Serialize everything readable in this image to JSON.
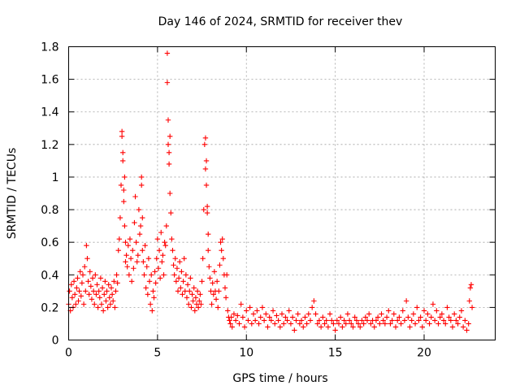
{
  "chart_data": {
    "type": "scatter",
    "title": "Day 146 of 2024, SRMTID for receiver thev",
    "xlabel": "GPS time / hours",
    "ylabel": "SRMTID / TECUs",
    "xlim": [
      0,
      24
    ],
    "ylim": [
      0,
      1.8
    ],
    "xticks": [
      0,
      5,
      10,
      15,
      20
    ],
    "yticks": [
      0,
      0.2,
      0.4,
      0.6,
      0.8,
      1,
      1.2,
      1.4,
      1.6,
      1.8
    ],
    "xtick_labels": [
      "0",
      "5",
      "10",
      "15",
      "20"
    ],
    "ytick_labels": [
      "0",
      "0.2",
      "0.4",
      "0.6",
      "0.8",
      "1",
      "1.2",
      "1.4",
      "1.6",
      "1.8"
    ],
    "grid": true,
    "marker": "plus",
    "color": "#ff0000",
    "series": [
      {
        "name": "SRMTID",
        "x": [
          0.0,
          0.05,
          0.1,
          0.15,
          0.2,
          0.25,
          0.3,
          0.35,
          0.4,
          0.45,
          0.5,
          0.55,
          0.6,
          0.65,
          0.7,
          0.75,
          0.8,
          0.85,
          0.9,
          0.95,
          1.0,
          1.05,
          1.1,
          1.15,
          1.2,
          1.25,
          1.3,
          1.35,
          1.4,
          1.45,
          1.5,
          1.55,
          1.6,
          1.65,
          1.7,
          1.75,
          1.8,
          1.85,
          1.9,
          1.95,
          2.0,
          2.05,
          2.1,
          2.15,
          2.2,
          2.25,
          2.3,
          2.35,
          2.4,
          2.45,
          2.5,
          2.55,
          2.6,
          2.65,
          2.7,
          2.75,
          2.8,
          2.85,
          2.9,
          2.95,
          3.0,
          3.0,
          3.05,
          3.05,
          3.1,
          3.1,
          3.15,
          3.15,
          3.2,
          3.2,
          3.25,
          3.3,
          3.35,
          3.4,
          3.45,
          3.5,
          3.55,
          3.6,
          3.65,
          3.7,
          3.75,
          3.8,
          3.85,
          3.9,
          3.95,
          4.0,
          4.05,
          4.1,
          4.1,
          4.15,
          4.15,
          4.2,
          4.25,
          4.3,
          4.35,
          4.4,
          4.45,
          4.5,
          4.55,
          4.6,
          4.65,
          4.7,
          4.75,
          4.8,
          4.85,
          4.9,
          4.95,
          5.0,
          5.05,
          5.1,
          5.15,
          5.2,
          5.25,
          5.3,
          5.35,
          5.4,
          5.45,
          5.5,
          5.55,
          5.55,
          5.6,
          5.6,
          5.65,
          5.65,
          5.7,
          5.7,
          5.75,
          5.8,
          5.85,
          5.9,
          5.95,
          6.0,
          6.05,
          6.1,
          6.15,
          6.2,
          6.25,
          6.3,
          6.35,
          6.4,
          6.45,
          6.5,
          6.55,
          6.6,
          6.65,
          6.7,
          6.75,
          6.8,
          6.85,
          6.9,
          6.95,
          7.0,
          7.05,
          7.1,
          7.15,
          7.2,
          7.25,
          7.3,
          7.35,
          7.4,
          7.45,
          7.5,
          7.55,
          7.6,
          7.65,
          7.7,
          7.7,
          7.75,
          7.75,
          7.8,
          7.8,
          7.85,
          7.85,
          7.9,
          7.95,
          8.0,
          8.05,
          8.1,
          8.15,
          8.2,
          8.25,
          8.3,
          8.35,
          8.4,
          8.45,
          8.5,
          8.55,
          8.6,
          8.65,
          8.7,
          8.75,
          8.8,
          8.85,
          8.9,
          8.95,
          9.0,
          9.05,
          9.1,
          9.15,
          9.2,
          9.3,
          9.4,
          9.5,
          9.6,
          9.7,
          9.8,
          9.9,
          10.0,
          10.1,
          10.2,
          10.3,
          10.4,
          10.5,
          10.6,
          10.7,
          10.8,
          10.9,
          11.0,
          11.1,
          11.2,
          11.3,
          11.4,
          11.5,
          11.6,
          11.7,
          11.8,
          11.9,
          12.0,
          12.1,
          12.2,
          12.3,
          12.4,
          12.5,
          12.6,
          12.7,
          12.8,
          12.9,
          13.0,
          13.1,
          13.2,
          13.3,
          13.4,
          13.5,
          13.6,
          13.7,
          13.8,
          13.9,
          14.0,
          14.1,
          14.2,
          14.3,
          14.4,
          14.5,
          14.6,
          14.7,
          14.8,
          14.9,
          15.0,
          15.1,
          15.2,
          15.3,
          15.4,
          15.5,
          15.6,
          15.7,
          15.8,
          15.9,
          16.0,
          16.1,
          16.2,
          16.3,
          16.4,
          16.5,
          16.6,
          16.7,
          16.8,
          16.9,
          17.0,
          17.1,
          17.2,
          17.3,
          17.4,
          17.5,
          17.6,
          17.7,
          17.8,
          17.9,
          18.0,
          18.1,
          18.2,
          18.3,
          18.4,
          18.5,
          18.6,
          18.7,
          18.8,
          18.9,
          19.0,
          19.1,
          19.2,
          19.3,
          19.4,
          19.5,
          19.6,
          19.7,
          19.8,
          19.9,
          20.0,
          20.1,
          20.2,
          20.3,
          20.4,
          20.5,
          20.6,
          20.7,
          20.8,
          20.9,
          21.0,
          21.1,
          21.2,
          21.3,
          21.4,
          21.5,
          21.6,
          21.7,
          21.8,
          21.9,
          22.0,
          22.1,
          22.2,
          22.3,
          22.4,
          22.5,
          22.55,
          22.6,
          22.65,
          22.7
        ],
        "y": [
          0.22,
          0.3,
          0.18,
          0.34,
          0.26,
          0.2,
          0.36,
          0.28,
          0.22,
          0.32,
          0.38,
          0.24,
          0.3,
          0.42,
          0.27,
          0.35,
          0.4,
          0.22,
          0.45,
          0.3,
          0.58,
          0.5,
          0.36,
          0.28,
          0.42,
          0.33,
          0.25,
          0.38,
          0.3,
          0.22,
          0.4,
          0.28,
          0.34,
          0.2,
          0.3,
          0.26,
          0.38,
          0.22,
          0.32,
          0.18,
          0.28,
          0.36,
          0.24,
          0.3,
          0.2,
          0.34,
          0.26,
          0.22,
          0.32,
          0.28,
          0.24,
          0.36,
          0.2,
          0.3,
          0.4,
          0.35,
          0.55,
          0.62,
          0.75,
          0.95,
          1.25,
          1.28,
          1.1,
          1.15,
          0.85,
          0.92,
          0.7,
          1.0,
          0.6,
          0.48,
          0.52,
          0.45,
          0.58,
          0.4,
          0.62,
          0.5,
          0.36,
          0.55,
          0.44,
          0.72,
          0.88,
          0.6,
          0.48,
          0.52,
          0.8,
          0.65,
          0.7,
          0.95,
          1.0,
          0.75,
          0.55,
          0.48,
          0.4,
          0.58,
          0.32,
          0.45,
          0.28,
          0.5,
          0.36,
          0.22,
          0.4,
          0.18,
          0.3,
          0.26,
          0.42,
          0.35,
          0.5,
          0.62,
          0.44,
          0.55,
          0.38,
          0.66,
          0.48,
          0.52,
          0.4,
          0.6,
          0.58,
          0.7,
          1.58,
          1.76,
          1.2,
          1.35,
          1.08,
          1.15,
          0.9,
          1.25,
          0.78,
          0.62,
          0.55,
          0.46,
          0.4,
          0.5,
          0.36,
          0.44,
          0.3,
          0.38,
          0.48,
          0.32,
          0.42,
          0.28,
          0.36,
          0.5,
          0.3,
          0.4,
          0.26,
          0.34,
          0.22,
          0.3,
          0.38,
          0.2,
          0.28,
          0.24,
          0.32,
          0.18,
          0.26,
          0.22,
          0.3,
          0.2,
          0.24,
          0.28,
          0.22,
          0.36,
          0.5,
          0.8,
          1.2,
          1.24,
          1.05,
          1.1,
          0.95,
          0.82,
          0.78,
          0.65,
          0.55,
          0.45,
          0.38,
          0.3,
          0.22,
          0.35,
          0.28,
          0.42,
          0.3,
          0.25,
          0.36,
          0.2,
          0.3,
          0.46,
          0.6,
          0.55,
          0.62,
          0.5,
          0.4,
          0.32,
          0.26,
          0.4,
          0.18,
          0.14,
          0.12,
          0.1,
          0.14,
          0.08,
          0.16,
          0.12,
          0.15,
          0.1,
          0.22,
          0.14,
          0.08,
          0.18,
          0.12,
          0.2,
          0.1,
          0.16,
          0.12,
          0.18,
          0.1,
          0.14,
          0.2,
          0.12,
          0.16,
          0.08,
          0.14,
          0.12,
          0.18,
          0.1,
          0.15,
          0.12,
          0.08,
          0.16,
          0.1,
          0.14,
          0.12,
          0.18,
          0.1,
          0.14,
          0.06,
          0.12,
          0.16,
          0.1,
          0.12,
          0.08,
          0.14,
          0.1,
          0.16,
          0.12,
          0.2,
          0.24,
          0.16,
          0.1,
          0.12,
          0.08,
          0.14,
          0.1,
          0.12,
          0.08,
          0.16,
          0.12,
          0.1,
          0.06,
          0.12,
          0.1,
          0.14,
          0.08,
          0.12,
          0.1,
          0.16,
          0.12,
          0.1,
          0.08,
          0.14,
          0.12,
          0.1,
          0.08,
          0.12,
          0.1,
          0.14,
          0.12,
          0.16,
          0.1,
          0.12,
          0.08,
          0.12,
          0.14,
          0.1,
          0.16,
          0.12,
          0.1,
          0.14,
          0.18,
          0.1,
          0.12,
          0.16,
          0.08,
          0.12,
          0.14,
          0.1,
          0.18,
          0.12,
          0.24,
          0.14,
          0.08,
          0.12,
          0.16,
          0.1,
          0.2,
          0.12,
          0.14,
          0.08,
          0.18,
          0.12,
          0.16,
          0.1,
          0.14,
          0.22,
          0.12,
          0.18,
          0.1,
          0.14,
          0.16,
          0.12,
          0.1,
          0.2,
          0.14,
          0.12,
          0.08,
          0.16,
          0.12,
          0.1,
          0.14,
          0.18,
          0.08,
          0.12,
          0.06,
          0.1,
          0.24,
          0.32,
          0.34,
          0.2
        ]
      }
    ]
  }
}
